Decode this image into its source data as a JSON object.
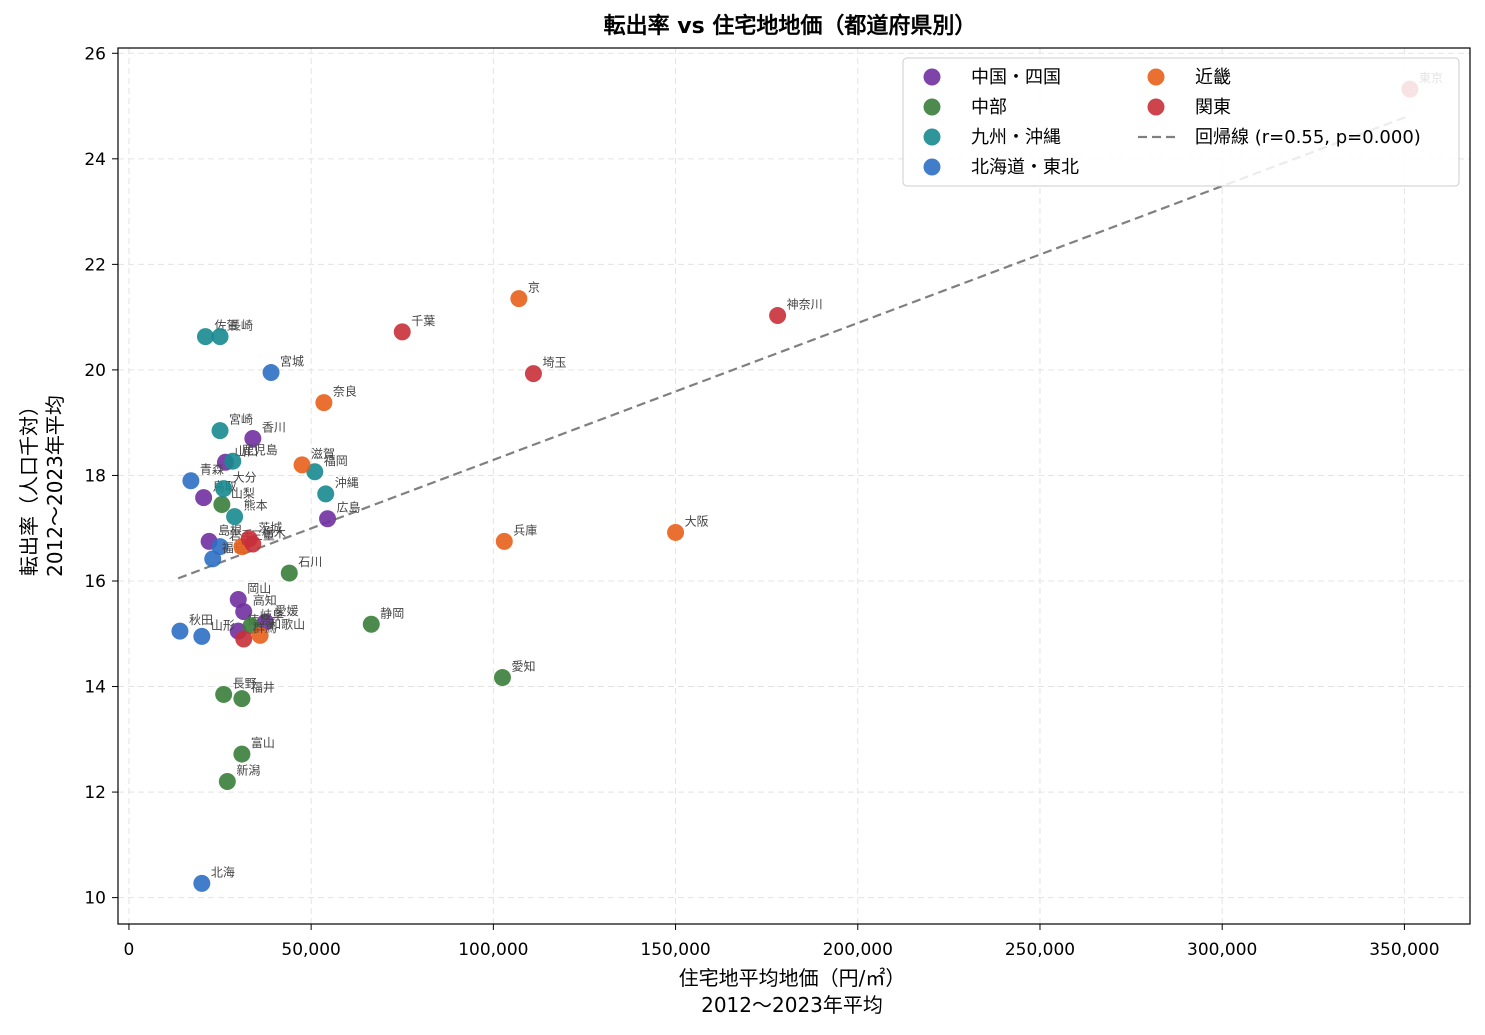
{
  "chart_data": {
    "type": "scatter",
    "title": "転出率 vs 住宅地地価（都道府県別）",
    "xlabel": "住宅地平均地価（円/㎡）",
    "xlabel2": "2012〜2023年平均",
    "ylabel": "転出率（人口千対）",
    "ylabel2": "2012〜2023年平均",
    "xlim": [
      -3000,
      368000
    ],
    "ylim": [
      9.5,
      26.1
    ],
    "xticks": [
      0,
      50000,
      100000,
      150000,
      200000,
      250000,
      300000,
      350000
    ],
    "xtick_labels": [
      "0",
      "50,000",
      "100,000",
      "150,000",
      "200,000",
      "250,000",
      "300,000",
      "350,000"
    ],
    "yticks": [
      10,
      12,
      14,
      16,
      18,
      20,
      22,
      24,
      26
    ],
    "ytick_labels": [
      "10",
      "12",
      "14",
      "16",
      "18",
      "20",
      "22",
      "24",
      "26"
    ],
    "grid": true,
    "legend_position": "top-right",
    "regression": {
      "label": "回帰線 (r=0.55, p=0.000)",
      "x": [
        13500,
        351500
      ],
      "y": [
        16.05,
        24.82
      ],
      "color": "#808080"
    },
    "series": [
      {
        "name": "中国・四国",
        "color": "#7030a0",
        "points": [
          {
            "label": "香川",
            "x": 34000,
            "y": 18.7
          },
          {
            "label": "山口",
            "x": 26500,
            "y": 18.25
          },
          {
            "label": "鳥取",
            "x": 20500,
            "y": 17.58
          },
          {
            "label": "島根",
            "x": 22000,
            "y": 16.75
          },
          {
            "label": "岡山",
            "x": 30000,
            "y": 15.65
          },
          {
            "label": "高知",
            "x": 31500,
            "y": 15.42
          },
          {
            "label": "愛媛",
            "x": 37500,
            "y": 15.22
          },
          {
            "label": "徳島",
            "x": 30000,
            "y": 15.05
          },
          {
            "label": "広島",
            "x": 54500,
            "y": 17.18
          }
        ]
      },
      {
        "name": "中部",
        "color": "#3a7d3a",
        "points": [
          {
            "label": "山梨",
            "x": 25500,
            "y": 17.45
          },
          {
            "label": "石川",
            "x": 44000,
            "y": 16.15
          },
          {
            "label": "静岡",
            "x": 66500,
            "y": 15.18
          },
          {
            "label": "岐阜",
            "x": 33500,
            "y": 15.15
          },
          {
            "label": "愛知",
            "x": 102500,
            "y": 14.17
          },
          {
            "label": "長野",
            "x": 26000,
            "y": 13.85
          },
          {
            "label": "福井",
            "x": 31000,
            "y": 13.77
          },
          {
            "label": "富山",
            "x": 31000,
            "y": 12.72
          },
          {
            "label": "新潟",
            "x": 27000,
            "y": 12.2
          }
        ]
      },
      {
        "name": "九州・沖縄",
        "color": "#17898f",
        "points": [
          {
            "label": "佐賀",
            "x": 21000,
            "y": 20.63
          },
          {
            "label": "長崎",
            "x": 25000,
            "y": 20.63
          },
          {
            "label": "宮崎",
            "x": 25000,
            "y": 18.85
          },
          {
            "label": "鹿児島",
            "x": 28500,
            "y": 18.27
          },
          {
            "label": "福岡",
            "x": 51000,
            "y": 18.07
          },
          {
            "label": "沖縄",
            "x": 54000,
            "y": 17.65
          },
          {
            "label": "大分",
            "x": 26000,
            "y": 17.75
          },
          {
            "label": "熊本",
            "x": 29000,
            "y": 17.22
          }
        ]
      },
      {
        "name": "北海道・東北",
        "color": "#2e6fc4",
        "points": [
          {
            "label": "宮城",
            "x": 39000,
            "y": 19.95
          },
          {
            "label": "青森",
            "x": 17000,
            "y": 17.9
          },
          {
            "label": "岩手",
            "x": 25000,
            "y": 16.65
          },
          {
            "label": "福島",
            "x": 23000,
            "y": 16.42
          },
          {
            "label": "秋田",
            "x": 14000,
            "y": 15.05
          },
          {
            "label": "山形",
            "x": 20000,
            "y": 14.95
          },
          {
            "label": "北海",
            "x": 20000,
            "y": 10.27
          }
        ]
      },
      {
        "name": "近畿",
        "color": "#e8601c",
        "points": [
          {
            "label": "京",
            "x": 107000,
            "y": 21.35
          },
          {
            "label": "奈良",
            "x": 53500,
            "y": 19.38
          },
          {
            "label": "滋賀",
            "x": 47500,
            "y": 18.2
          },
          {
            "label": "大阪",
            "x": 150000,
            "y": 16.92
          },
          {
            "label": "兵庫",
            "x": 103000,
            "y": 16.75
          },
          {
            "label": "三重",
            "x": 31000,
            "y": 16.65
          },
          {
            "label": "和歌山",
            "x": 36000,
            "y": 14.97
          }
        ]
      },
      {
        "name": "関東",
        "color": "#c8303a",
        "points": [
          {
            "label": "東京",
            "x": 351500,
            "y": 25.32
          },
          {
            "label": "神奈川",
            "x": 178000,
            "y": 21.03
          },
          {
            "label": "千葉",
            "x": 75000,
            "y": 20.72
          },
          {
            "label": "埼玉",
            "x": 111000,
            "y": 19.93
          },
          {
            "label": "茨城",
            "x": 33000,
            "y": 16.8
          },
          {
            "label": "栃木",
            "x": 34000,
            "y": 16.7
          },
          {
            "label": "群馬",
            "x": 31500,
            "y": 14.9
          }
        ]
      }
    ]
  }
}
